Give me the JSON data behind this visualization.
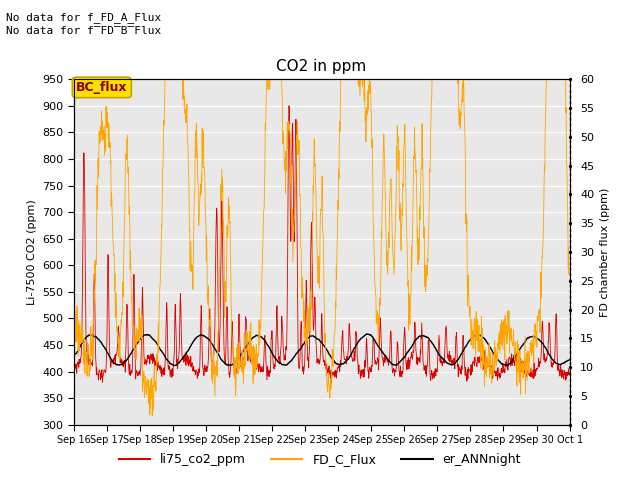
{
  "title": "CO2 in ppm",
  "ylabel_left": "Li-7500 CO2 (ppm)",
  "ylabel_right": "FD chamber flux (ppm)",
  "ylim_left": [
    300,
    950
  ],
  "ylim_right": [
    0,
    60
  ],
  "no_data_line1": "No data for f_FD_A_Flux",
  "no_data_line2": "No data for f̅FD̅B̅Flux",
  "bc_flux_label": "BC_flux",
  "legend_labels": [
    "li75_co2_ppm",
    "FD_C_Flux",
    "er_ANNnight"
  ],
  "legend_colors": [
    "#dd0000",
    "#ffa500",
    "#000000"
  ],
  "bg_color": "#e8e8e8",
  "left_yticks": [
    300,
    350,
    400,
    450,
    500,
    550,
    600,
    650,
    700,
    750,
    800,
    850,
    900,
    950
  ],
  "right_yticks": [
    0,
    5,
    10,
    15,
    20,
    25,
    30,
    35,
    40,
    45,
    50,
    55,
    60
  ],
  "x_tick_labels": [
    "Sep 16",
    "Sep 17",
    "Sep 18",
    "Sep 19",
    "Sep 20",
    "Sep 21",
    "Sep 22",
    "Sep 23",
    "Sep 24",
    "Sep 25",
    "Sep 26",
    "Sep 27",
    "Sep 28",
    "Sep 29",
    "Sep 30",
    "Oct 1"
  ]
}
